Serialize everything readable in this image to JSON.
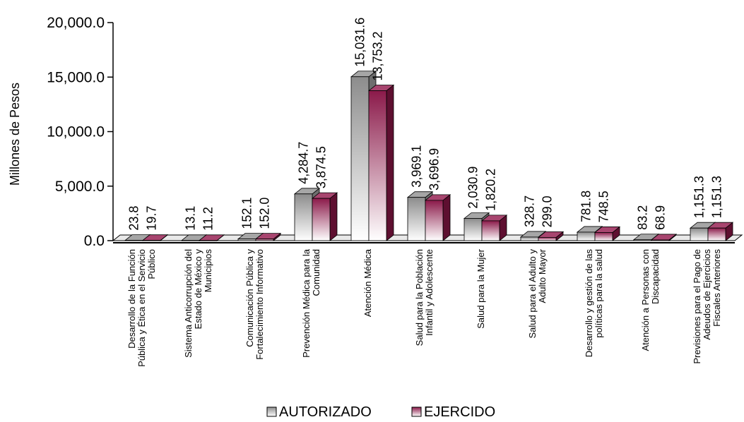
{
  "chart_data": {
    "type": "bar",
    "title": "",
    "ylabel": "Millones de Pesos",
    "xlabel": "",
    "ylim": [
      0,
      20000
    ],
    "yticks": [
      0,
      5000,
      10000,
      15000,
      20000
    ],
    "ytick_labels": [
      "0.0",
      "5,000.0",
      "10,000.0",
      "15,000.0",
      "20,000.0"
    ],
    "categories": [
      [
        "Desarrollo de la Función",
        "Pública y Ética en el Servicio",
        "Público"
      ],
      [
        "Sistema Anticorrupción del",
        "Estado de México y",
        "Municipios"
      ],
      [
        "Comunicación Pública y",
        "Fortalecimiento Informativo"
      ],
      [
        "Prevención Médica para la",
        "Comunidad"
      ],
      [
        "Atención Médica"
      ],
      [
        "Salud para la Población",
        "Infantil y Adolescente"
      ],
      [
        "Salud para la Mujer"
      ],
      [
        "Salud para el Adulto y",
        "Adulto Mayor"
      ],
      [
        "Desarrollo y gestión de las",
        "políticas para la salud"
      ],
      [
        "Atención a Personas con",
        "Discapacidad"
      ],
      [
        "Previsiones para el Pago de",
        "Adeudos de Ejercicios",
        "Fiscales Anteriores"
      ]
    ],
    "series": [
      {
        "name": "AUTORIZADO",
        "color": "#8c8c8c",
        "values": [
          23.8,
          13.1,
          152.1,
          4284.7,
          15031.6,
          3969.1,
          2030.9,
          328.7,
          781.8,
          83.2,
          1151.3
        ],
        "labels": [
          "23.8",
          "13.1",
          "152.1",
          "4,284.7",
          "15,031.6",
          "3,969.1",
          "2,030.9",
          "328.7",
          "781.8",
          "83.2",
          "1,151.3"
        ]
      },
      {
        "name": "EJERCIDO",
        "color": "#8b1a4a",
        "values": [
          19.7,
          11.2,
          152.0,
          3874.5,
          13753.2,
          3696.9,
          1820.2,
          299.0,
          748.5,
          68.9,
          1151.3
        ],
        "labels": [
          "19.7",
          "11.2",
          "152.0",
          "3,874.5",
          "13,753.2",
          "3,696.9",
          "1,820.2",
          "299.0",
          "748.5",
          "68.9",
          "1,151.3"
        ]
      }
    ],
    "grid": false,
    "legend": "bottom"
  }
}
